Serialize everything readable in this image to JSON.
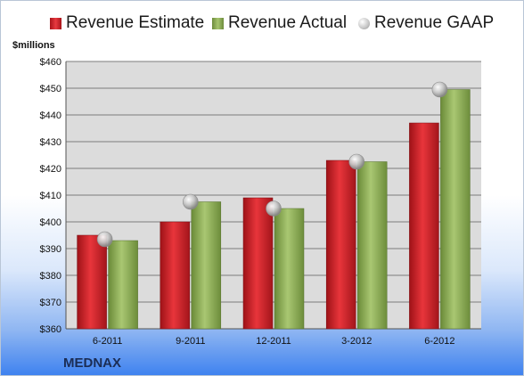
{
  "chart_data": {
    "type": "bar",
    "ylabel": "$millions",
    "ylim": [
      360,
      460
    ],
    "yticks": [
      "$360",
      "$370",
      "$380",
      "$390",
      "$400",
      "$410",
      "$420",
      "$430",
      "$440",
      "$450",
      "$460"
    ],
    "categories": [
      "6-2011",
      "9-2011",
      "12-2011",
      "3-2012",
      "6-2012"
    ],
    "series": [
      {
        "name": "Revenue Estimate",
        "kind": "bar",
        "color": "#d11f26",
        "values": [
          395,
          400,
          409,
          423,
          437
        ]
      },
      {
        "name": "Revenue Actual",
        "kind": "bar",
        "color": "#8fb05a",
        "values": [
          393,
          407.5,
          405,
          422.5,
          449.5
        ]
      },
      {
        "name": "Revenue GAAP",
        "kind": "marker",
        "color": "#c8c8c8",
        "values": [
          393.5,
          407.5,
          405,
          422.5,
          449.5
        ]
      }
    ],
    "grid": true,
    "legend": "top"
  },
  "footer": {
    "company": "MEDNAX"
  }
}
